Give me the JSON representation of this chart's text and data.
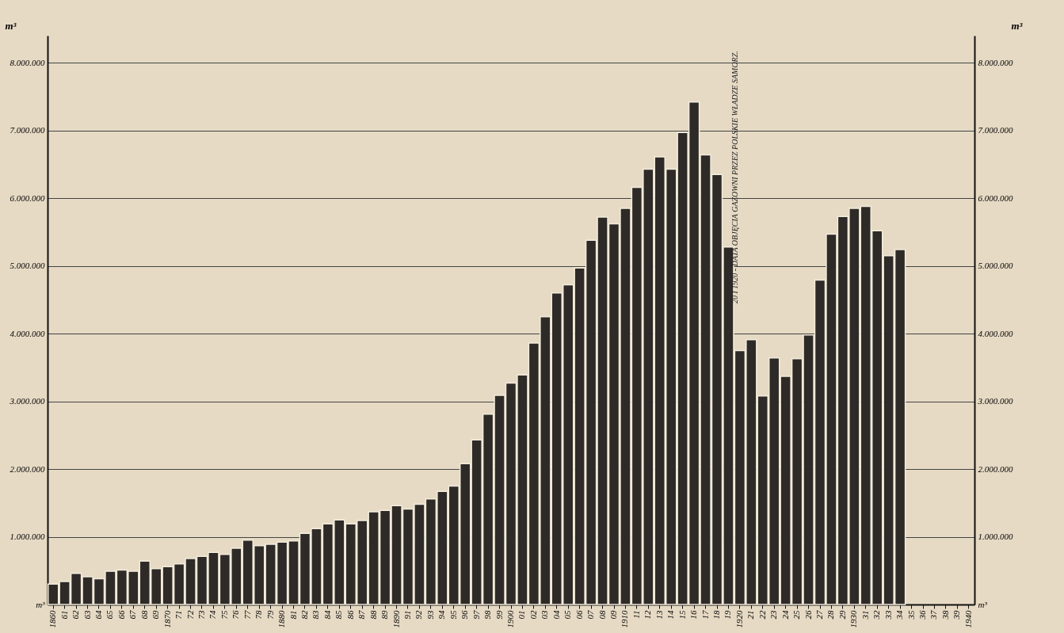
{
  "chart_data": {
    "type": "bar",
    "ylabel": "m³",
    "y2label": "m³",
    "categories": [
      "1860",
      "61",
      "62",
      "63",
      "64",
      "65",
      "66",
      "67",
      "68",
      "69",
      "1870",
      "71",
      "72",
      "73",
      "74",
      "75",
      "76",
      "77",
      "78",
      "79",
      "1880",
      "81",
      "82",
      "83",
      "84",
      "85",
      "86",
      "87",
      "88",
      "89",
      "1890",
      "91",
      "92",
      "93",
      "94",
      "95",
      "96",
      "97",
      "98",
      "99",
      "1900",
      "01",
      "02",
      "03",
      "04",
      "05",
      "06",
      "07",
      "08",
      "09",
      "1910",
      "11",
      "12",
      "13",
      "14",
      "15",
      "16",
      "17",
      "18",
      "19",
      "1920",
      "21",
      "22",
      "23",
      "24",
      "25",
      "26",
      "27",
      "28",
      "29",
      "1930",
      "31",
      "32",
      "33",
      "34",
      "35",
      "36",
      "37",
      "38",
      "39",
      "1940"
    ],
    "values": [
      300000,
      340000,
      460000,
      410000,
      380000,
      490000,
      510000,
      490000,
      640000,
      530000,
      560000,
      600000,
      680000,
      710000,
      770000,
      740000,
      830000,
      950000,
      870000,
      890000,
      920000,
      940000,
      1050000,
      1120000,
      1190000,
      1250000,
      1190000,
      1240000,
      1370000,
      1390000,
      1460000,
      1410000,
      1480000,
      1560000,
      1670000,
      1750000,
      2080000,
      2430000,
      2810000,
      3090000,
      3270000,
      3390000,
      3860000,
      4250000,
      4600000,
      4720000,
      4970000,
      5380000,
      5720000,
      5620000,
      5850000,
      6160000,
      6430000,
      6610000,
      6430000,
      6970000,
      7420000,
      6640000,
      6350000,
      5280000,
      3750000,
      3910000,
      3080000,
      3640000,
      3370000,
      3630000,
      3980000,
      4790000,
      5470000,
      5730000,
      5850000,
      5880000,
      5520000,
      5150000,
      5240000,
      null,
      null,
      null,
      null,
      null,
      null
    ],
    "color": "#2e2a27",
    "ylim": [
      0,
      8400000
    ],
    "yticks": [
      {
        "value": 0,
        "label": "m³"
      },
      {
        "value": 1000000,
        "label": "1.000.000"
      },
      {
        "value": 2000000,
        "label": "2.000.000"
      },
      {
        "value": 3000000,
        "label": "3.000.000"
      },
      {
        "value": 4000000,
        "label": "4.000.000"
      },
      {
        "value": 5000000,
        "label": "5.000.000"
      },
      {
        "value": 6000000,
        "label": "6.000.000"
      },
      {
        "value": 7000000,
        "label": "7.000.000"
      },
      {
        "value": 8000000,
        "label": "8.000.000"
      }
    ],
    "y2lim": [
      0,
      8400000
    ],
    "y2ticks": [
      {
        "value": 0,
        "label": "m³"
      },
      {
        "value": 1000000,
        "label": "1.000.000"
      },
      {
        "value": 2000000,
        "label": "2.000.000"
      },
      {
        "value": 3000000,
        "label": "3.000.000"
      },
      {
        "value": 4000000,
        "label": "4.000.000"
      },
      {
        "value": 5000000,
        "label": "5.000.000"
      },
      {
        "value": 6000000,
        "label": "6.000.000"
      },
      {
        "value": 7000000,
        "label": "7.000.000"
      },
      {
        "value": 8000000,
        "label": "8.000.000"
      }
    ],
    "grid": "y",
    "annotations": [
      "20 I 1920 - DATA OBJĘCIA GAZOWNI PRZEZ POLSKIE WŁADZE SAMORZ."
    ]
  }
}
